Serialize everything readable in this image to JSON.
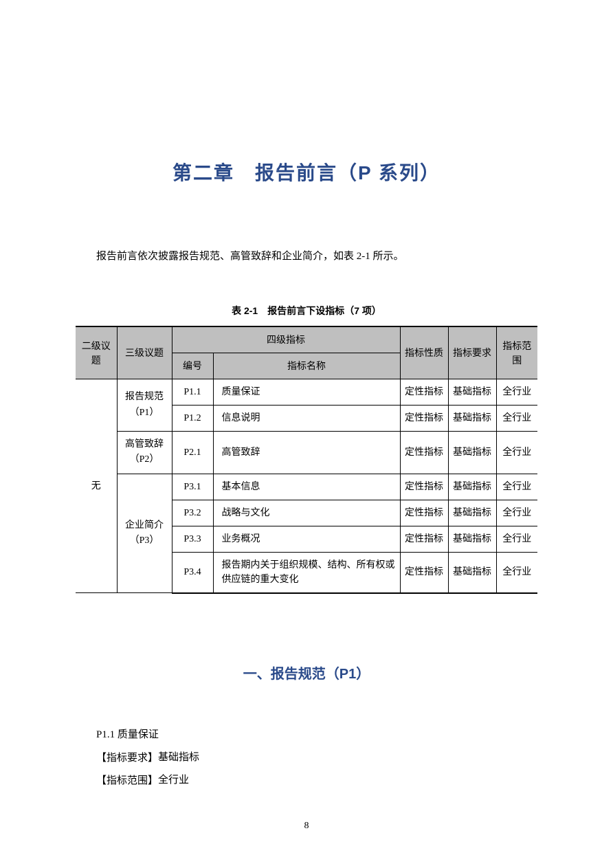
{
  "colors": {
    "title_color": "#2a4a8a",
    "header_bg": "#bfbfbf",
    "text_color": "#000000",
    "background": "#ffffff"
  },
  "typography": {
    "title_fontsize": 28,
    "body_fontsize": 15,
    "table_fontsize": 14,
    "section_fontsize": 20
  },
  "chapter": {
    "title": "第二章　报告前言（P 系列）"
  },
  "intro": "报告前言依次披露报告规范、高管致辞和企业简介，如表 2-1 所示。",
  "table": {
    "caption": "表 2-1　报告前言下设指标（7 项）",
    "headers": {
      "level2": "二级议题",
      "level3": "三级议题",
      "level4": "四级指标",
      "code": "编号",
      "name": "指标名称",
      "nature": "指标性质",
      "requirement": "指标要求",
      "scope": "指标范围"
    },
    "level2_value": "无",
    "groups": [
      {
        "level3": "报告规范（P1）",
        "rows": [
          {
            "code": "P1.1",
            "name": "质量保证",
            "nature": "定性指标",
            "req": "基础指标",
            "scope": "全行业"
          },
          {
            "code": "P1.2",
            "name": "信息说明",
            "nature": "定性指标",
            "req": "基础指标",
            "scope": "全行业"
          }
        ]
      },
      {
        "level3": "高管致辞（P2）",
        "rows": [
          {
            "code": "P2.1",
            "name": "高管致辞",
            "nature": "定性指标",
            "req": "基础指标",
            "scope": "全行业"
          }
        ]
      },
      {
        "level3": "企业简介（P3）",
        "rows": [
          {
            "code": "P3.1",
            "name": "基本信息",
            "nature": "定性指标",
            "req": "基础指标",
            "scope": "全行业"
          },
          {
            "code": "P3.2",
            "name": "战略与文化",
            "nature": "定性指标",
            "req": "基础指标",
            "scope": "全行业"
          },
          {
            "code": "P3.3",
            "name": "业务概况",
            "nature": "定性指标",
            "req": "基础指标",
            "scope": "全行业"
          },
          {
            "code": "P3.4",
            "name": "报告期内关于组织规模、结构、所有权或供应链的重大变化",
            "nature": "定性指标",
            "req": "基础指标",
            "scope": "全行业"
          }
        ]
      }
    ]
  },
  "section": {
    "title": "一、报告规范（P1）"
  },
  "detail": {
    "item_title": "P1.1 质量保证",
    "req_label": "【指标要求】",
    "req_value": "基础指标",
    "scope_label": "【指标范围】",
    "scope_value": "全行业"
  },
  "page_number": "8"
}
